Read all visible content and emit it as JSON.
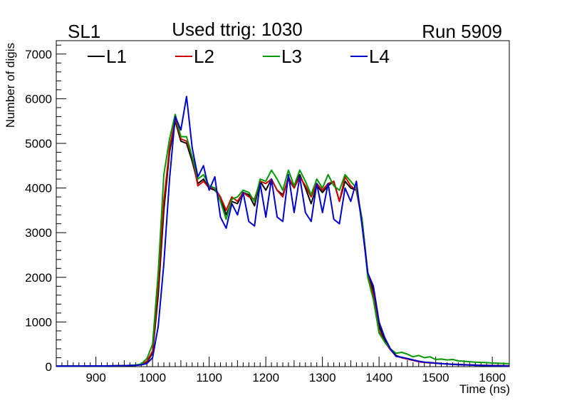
{
  "chart_data": {
    "type": "line",
    "title": "Used ttrig: 1030",
    "label_left": "SL1",
    "label_right": "Run 5909",
    "xlabel": "Time (ns)",
    "ylabel": "Number of digis",
    "xlim": [
      830,
      1630
    ],
    "ylim": [
      0,
      7300
    ],
    "x_ticks": [
      900,
      1000,
      1100,
      1200,
      1300,
      1400,
      1500,
      1600
    ],
    "y_ticks": [
      0,
      1000,
      2000,
      3000,
      4000,
      5000,
      6000,
      7000
    ],
    "legend_position": "top",
    "series": [
      {
        "name": "L1",
        "color": "#000000",
        "x": [
          830,
          840,
          850,
          860,
          870,
          880,
          890,
          900,
          910,
          920,
          930,
          940,
          950,
          960,
          970,
          980,
          990,
          1000,
          1010,
          1020,
          1030,
          1040,
          1050,
          1060,
          1070,
          1080,
          1090,
          1100,
          1110,
          1120,
          1130,
          1140,
          1150,
          1160,
          1170,
          1180,
          1190,
          1200,
          1210,
          1220,
          1230,
          1240,
          1250,
          1260,
          1270,
          1280,
          1290,
          1300,
          1310,
          1320,
          1330,
          1340,
          1350,
          1360,
          1370,
          1380,
          1390,
          1400,
          1410,
          1420,
          1430,
          1440,
          1450,
          1460,
          1470,
          1480,
          1490,
          1500,
          1510,
          1520,
          1530,
          1540,
          1550,
          1560,
          1570,
          1580,
          1590,
          1600,
          1610,
          1620,
          1630
        ],
        "values": [
          10,
          12,
          14,
          12,
          12,
          15,
          15,
          16,
          15,
          16,
          18,
          20,
          22,
          25,
          30,
          50,
          100,
          300,
          1600,
          3500,
          4800,
          5500,
          5050,
          5000,
          4600,
          4100,
          4200,
          4000,
          3950,
          3800,
          3400,
          3700,
          3650,
          3900,
          3850,
          3600,
          4150,
          3950,
          4200,
          3950,
          3850,
          4200,
          4000,
          4300,
          4000,
          3650,
          4050,
          3900,
          4050,
          4150,
          3700,
          4150,
          4000,
          3950,
          3300,
          2100,
          1700,
          900,
          600,
          400,
          250,
          200,
          180,
          150,
          120,
          100,
          90,
          80,
          70,
          60,
          55,
          50,
          45,
          40,
          35,
          30,
          28,
          25,
          22,
          20,
          18
        ]
      },
      {
        "name": "L2",
        "color": "#cc0000",
        "x": [
          830,
          840,
          850,
          860,
          870,
          880,
          890,
          900,
          910,
          920,
          930,
          940,
          950,
          960,
          970,
          980,
          990,
          1000,
          1010,
          1020,
          1030,
          1040,
          1050,
          1060,
          1070,
          1080,
          1090,
          1100,
          1110,
          1120,
          1130,
          1140,
          1150,
          1160,
          1170,
          1180,
          1190,
          1200,
          1210,
          1220,
          1230,
          1240,
          1250,
          1260,
          1270,
          1280,
          1290,
          1300,
          1310,
          1320,
          1330,
          1340,
          1350,
          1360,
          1370,
          1380,
          1390,
          1400,
          1410,
          1420,
          1430,
          1440,
          1450,
          1460,
          1470,
          1480,
          1490,
          1500,
          1510,
          1520,
          1530,
          1540,
          1550,
          1560,
          1570,
          1580,
          1590,
          1600,
          1610,
          1620,
          1630
        ],
        "values": [
          10,
          12,
          14,
          12,
          12,
          15,
          15,
          16,
          15,
          16,
          18,
          20,
          22,
          25,
          30,
          50,
          120,
          350,
          1800,
          3700,
          4900,
          5550,
          5100,
          5050,
          4700,
          4050,
          4150,
          4000,
          4000,
          3800,
          3500,
          3800,
          3700,
          3900,
          3800,
          3750,
          4150,
          4100,
          4200,
          3950,
          3800,
          4250,
          4000,
          4250,
          4050,
          3800,
          4100,
          3950,
          4100,
          4150,
          3700,
          4250,
          4050,
          3950,
          3250,
          2050,
          1600,
          800,
          550,
          380,
          240,
          200,
          170,
          140,
          110,
          95,
          85,
          75,
          65,
          60,
          50,
          45,
          40,
          35,
          30,
          28,
          25,
          22,
          20,
          18,
          15
        ]
      },
      {
        "name": "L3",
        "color": "#009900",
        "x": [
          830,
          840,
          850,
          860,
          870,
          880,
          890,
          900,
          910,
          920,
          930,
          940,
          950,
          960,
          970,
          980,
          990,
          1000,
          1010,
          1020,
          1030,
          1040,
          1050,
          1060,
          1070,
          1080,
          1090,
          1100,
          1110,
          1120,
          1130,
          1140,
          1150,
          1160,
          1170,
          1180,
          1190,
          1200,
          1210,
          1220,
          1230,
          1240,
          1250,
          1260,
          1270,
          1280,
          1290,
          1300,
          1310,
          1320,
          1330,
          1340,
          1350,
          1360,
          1370,
          1380,
          1390,
          1400,
          1410,
          1420,
          1430,
          1440,
          1450,
          1460,
          1470,
          1480,
          1490,
          1500,
          1510,
          1520,
          1530,
          1540,
          1550,
          1560,
          1570,
          1580,
          1590,
          1600,
          1610,
          1620,
          1630
        ],
        "values": [
          10,
          12,
          14,
          12,
          12,
          15,
          15,
          16,
          15,
          16,
          18,
          20,
          22,
          25,
          35,
          60,
          180,
          500,
          2100,
          4300,
          5100,
          5650,
          5150,
          5150,
          4700,
          4200,
          4300,
          4050,
          4000,
          3700,
          3300,
          3750,
          3800,
          3950,
          3900,
          3700,
          4200,
          4150,
          4400,
          4200,
          3950,
          4400,
          4050,
          4400,
          4150,
          3850,
          4200,
          4000,
          4300,
          4050,
          3950,
          4300,
          4150,
          4000,
          3300,
          2000,
          1500,
          750,
          550,
          400,
          300,
          320,
          280,
          220,
          250,
          200,
          220,
          160,
          170,
          150,
          160,
          130,
          120,
          110,
          100,
          95,
          90,
          80,
          75,
          70,
          65
        ]
      },
      {
        "name": "L4",
        "color": "#0000cc",
        "x": [
          830,
          840,
          850,
          860,
          870,
          880,
          890,
          900,
          910,
          920,
          930,
          940,
          950,
          960,
          970,
          980,
          990,
          1000,
          1010,
          1020,
          1030,
          1040,
          1050,
          1060,
          1070,
          1080,
          1090,
          1100,
          1110,
          1120,
          1130,
          1140,
          1150,
          1160,
          1170,
          1180,
          1190,
          1200,
          1210,
          1220,
          1230,
          1240,
          1250,
          1260,
          1270,
          1280,
          1290,
          1300,
          1310,
          1320,
          1330,
          1340,
          1350,
          1360,
          1370,
          1380,
          1390,
          1400,
          1410,
          1420,
          1430,
          1440,
          1450,
          1460,
          1470,
          1480,
          1490,
          1500,
          1510,
          1520,
          1530,
          1540,
          1550,
          1560,
          1570,
          1580,
          1590,
          1600,
          1610,
          1620,
          1630
        ],
        "values": [
          10,
          12,
          14,
          12,
          12,
          15,
          15,
          16,
          15,
          16,
          18,
          20,
          22,
          25,
          28,
          40,
          70,
          200,
          900,
          2300,
          4200,
          5600,
          5300,
          6050,
          4900,
          4250,
          4500,
          3950,
          4250,
          3350,
          3100,
          3650,
          3400,
          3900,
          3250,
          3150,
          4100,
          3350,
          4200,
          3350,
          3250,
          4300,
          3450,
          4250,
          3450,
          3250,
          4100,
          3450,
          4100,
          3300,
          3200,
          4000,
          3700,
          4150,
          3150,
          2100,
          1800,
          1000,
          650,
          400,
          230,
          210,
          180,
          150,
          120,
          100,
          90,
          75,
          65,
          60,
          50,
          45,
          40,
          35,
          30,
          25,
          22,
          20,
          18,
          15,
          12
        ]
      }
    ]
  }
}
